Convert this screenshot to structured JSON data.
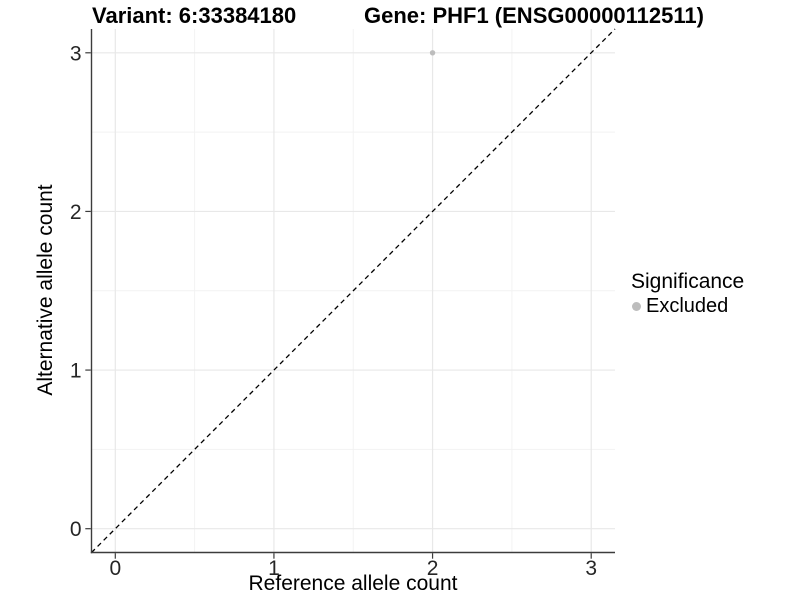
{
  "chart_data": {
    "type": "scatter",
    "title_left": "Variant: 6:33384180",
    "title_right": "Gene: PHF1 (ENSG00000112511)",
    "xlabel": "Reference allele count",
    "ylabel": "Alternative allele count",
    "xlim": [
      -0.15,
      3.15
    ],
    "ylim": [
      -0.15,
      3.15
    ],
    "xticks": [
      0,
      1,
      2,
      3
    ],
    "yticks": [
      0,
      1,
      2,
      3
    ],
    "xminor": [
      0.5,
      1.5,
      2.5
    ],
    "yminor": [
      0.5,
      1.5,
      2.5
    ],
    "grid": true,
    "reference_line": {
      "type": "identity",
      "slope": 1,
      "intercept": 0,
      "style": "dashed",
      "color": "#000000"
    },
    "series": [
      {
        "name": "Excluded",
        "marker": "circle",
        "color": "#bdbdbd",
        "points": [
          {
            "x": 2,
            "y": 3
          }
        ]
      }
    ],
    "legend": {
      "title": "Significance",
      "position": "right",
      "entries": [
        {
          "label": "Excluded",
          "color": "#bdbdbd"
        }
      ]
    }
  },
  "colors": {
    "background": "#ffffff",
    "grid_major": "#e8e8e8",
    "grid_minor": "#f2f2f2",
    "axis_line": "#3c3c3c",
    "tick_mark": "#3c3c3c",
    "tick_label": "#262626",
    "title_text": "#000000",
    "point": "#bdbdbd"
  }
}
